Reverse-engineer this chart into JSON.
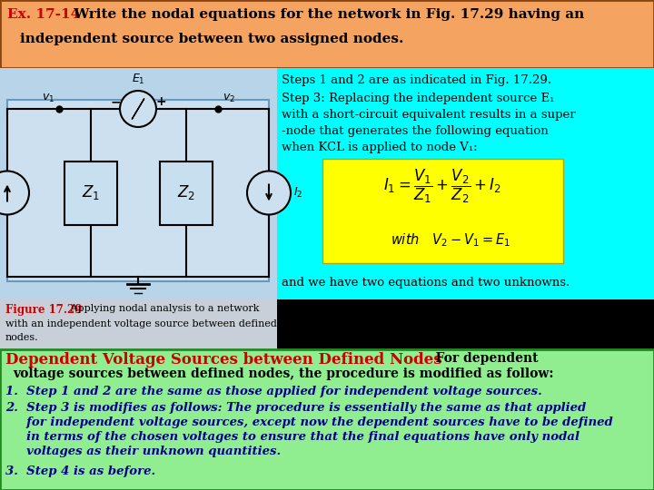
{
  "title_box_bg": "#F4A460",
  "title_prefix": "Ex. 17-14",
  "top_right_bg": "#00FFFF",
  "circuit_area_bg": "#b8d8e8",
  "circuit_inner_bg": "#c8e4f0",
  "caption_area_bg": "#d0d8e0",
  "bottom_bg": "#90EE90",
  "fig_caption_bold": "Figure 17.29",
  "fig_caption_rest": " Applying nodal analysis to a network\nwith an independent voltage source between defined\nnodes.",
  "step12_text": "Steps 1 and 2 are as indicated in Fig. 17.29.",
  "equation_bg": "#FFFF00",
  "conclusion_text": "and we have two equations and two unknowns.",
  "dvs_title": "Dependent Voltage Sources between Defined Nodes",
  "dvs_title_color": "#CC0000",
  "item1": "1.  Step 1 and 2 are the same as those applied for independent voltage sources.",
  "item2_line1": "2.  Step 3 is modifies as follows: The procedure is essentially the same as that applied",
  "item2_line2": "     for independent voltage sources, except now the dependent sources have to be defined",
  "item2_line3": "     in terms of the chosen voltages to ensure that the final equations have only nodal",
  "item2_line4": "     voltages as their unknown quantities.",
  "item3": "3.  Step 4 is as before.",
  "blue_text_color": "#00008B",
  "black_text_color": "#000000",
  "red_color": "#CC0000"
}
